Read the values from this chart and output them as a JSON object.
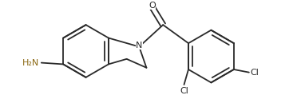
{
  "bg_color": "#ffffff",
  "line_color": "#2a2a2a",
  "atom_colors": {
    "N": "#2a2a2a",
    "O": "#2a2a2a",
    "Cl": "#2a2a2a",
    "NH2": "#8B6914"
  },
  "font_size_label": 8.0,
  "line_width": 1.3,
  "fig_w": 3.72,
  "fig_h": 1.34,
  "dpi": 100
}
